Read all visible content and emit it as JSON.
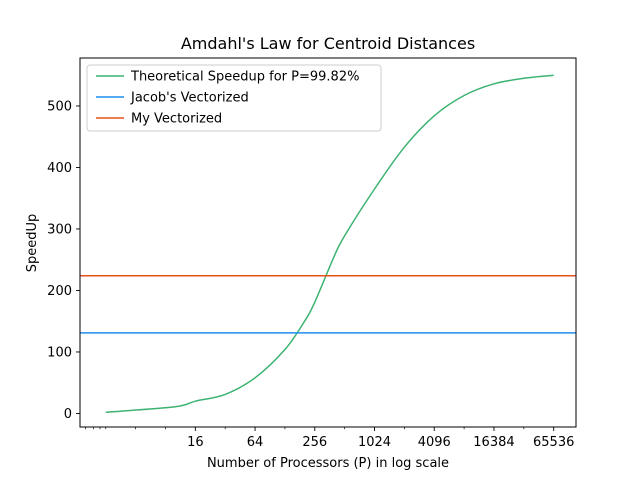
{
  "chart_data": {
    "type": "line",
    "title": "Amdahl's Law for Centroid Distances",
    "xlabel": "Number of Processors (P) in log scale",
    "ylabel": "SpeedUp",
    "x_scale": "log2",
    "xlim": [
      1.1,
      110000
    ],
    "ylim": [
      -22,
      578
    ],
    "x_ticks": [
      16,
      64,
      256,
      1024,
      4096,
      16384,
      65536
    ],
    "x_tick_labels": [
      "16",
      "64",
      "256",
      "1024",
      "4096",
      "16384",
      "65536"
    ],
    "y_ticks": [
      0,
      100,
      200,
      300,
      400,
      500
    ],
    "y_tick_labels": [
      "0",
      "100",
      "200",
      "300",
      "400",
      "500"
    ],
    "grid": false,
    "legend_position": "top-left",
    "series": [
      {
        "name": "Theoretical Speedup for P=99.82%",
        "kind": "curve",
        "color": "#3cb371",
        "x": [
          2,
          10,
          16,
          32,
          64,
          128,
          200,
          256,
          400,
          512,
          1024,
          2048,
          4096,
          8192,
          16384,
          32768,
          65536
        ],
        "y": [
          2.0,
          10.9,
          20,
          31,
          58,
          104,
          149,
          181,
          255,
          289,
          365,
          433,
          484,
          517,
          536,
          545,
          550
        ]
      },
      {
        "name": "Jacob's Vectorized",
        "kind": "hline",
        "color": "#1f8ef1",
        "value": 131
      },
      {
        "name": "My Vectorized",
        "kind": "hline",
        "color": "#e8501a",
        "value": 224
      }
    ]
  }
}
